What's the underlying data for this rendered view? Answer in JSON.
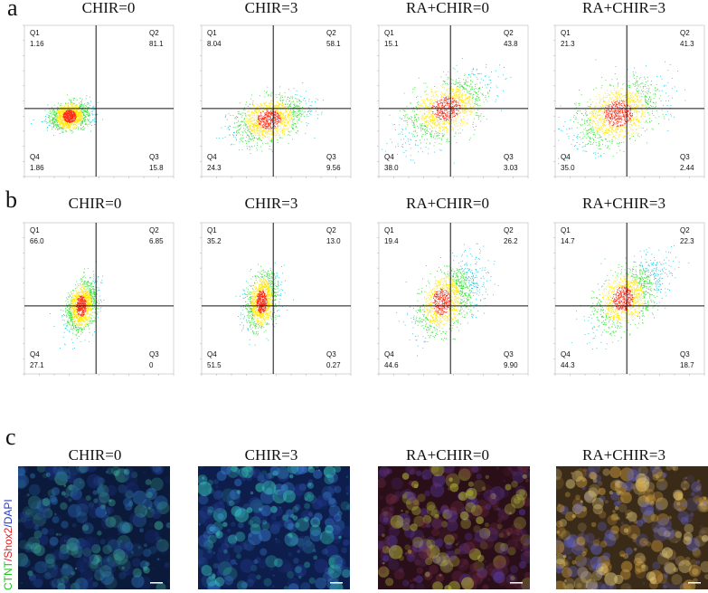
{
  "panels": [
    {
      "letter": "a",
      "conditions": [
        {
          "title": "CHIR=0",
          "q1": "1.16",
          "q2": "81.1",
          "q3": "15.8",
          "q4": "1.86",
          "center": [
            0.3,
            0.4
          ],
          "spread": [
            0.1,
            0.1
          ],
          "tilt": 0.5
        },
        {
          "title": "CHIR=3",
          "q1": "8.04",
          "q2": "58.1",
          "q3": "9.56",
          "q4": "24.3",
          "center": [
            0.45,
            0.38
          ],
          "spread": [
            0.18,
            0.15
          ],
          "tilt": 0.6
        },
        {
          "title": "RA+CHIR=0",
          "q1": "15.1",
          "q2": "43.8",
          "q3": "3.03",
          "q4": "38.0",
          "center": [
            0.45,
            0.45
          ],
          "spread": [
            0.22,
            0.18
          ],
          "tilt": 0.9
        },
        {
          "title": "RA+CHIR=3",
          "q1": "21.3",
          "q2": "41.3",
          "q3": "2.44",
          "q4": "35.0",
          "center": [
            0.42,
            0.42
          ],
          "spread": [
            0.22,
            0.2
          ],
          "tilt": 0.8
        }
      ]
    },
    {
      "letter": "b",
      "conditions": [
        {
          "title": "CHIR=0",
          "q1": "66.0",
          "q2": "6.85",
          "q3": "0",
          "q4": "27.1",
          "center": [
            0.38,
            0.45
          ],
          "spread": [
            0.08,
            0.16
          ],
          "tilt": 1.6
        },
        {
          "title": "CHIR=3",
          "q1": "35.2",
          "q2": "13.0",
          "q3": "0.27",
          "q4": "51.5",
          "center": [
            0.4,
            0.48
          ],
          "spread": [
            0.08,
            0.18
          ],
          "tilt": 1.5
        },
        {
          "title": "RA+CHIR=0",
          "q1": "19.4",
          "q2": "26.2",
          "q3": "9.90",
          "q4": "44.6",
          "center": [
            0.42,
            0.48
          ],
          "spread": [
            0.14,
            0.2
          ],
          "tilt": 1.3
        },
        {
          "title": "RA+CHIR=3",
          "q1": "14.7",
          "q2": "22.3",
          "q3": "18.7",
          "q4": "44.3",
          "center": [
            0.45,
            0.5
          ],
          "spread": [
            0.16,
            0.18
          ],
          "tilt": 1.2
        }
      ]
    }
  ],
  "panel_c": {
    "letter": "c",
    "stain_label_ctnt": "CTNT",
    "stain_label_shox2": "/Shox2",
    "stain_label_dapi": "/DAPI",
    "stain_colors": {
      "ctnt": "#22c022",
      "shox2": "#e02020",
      "dapi": "#2a3ad8"
    },
    "images": [
      {
        "title": "CHIR=0"
      },
      {
        "title": "CHIR=3"
      },
      {
        "title": "RA+CHIR=0"
      },
      {
        "title": "RA+CHIR=3"
      }
    ]
  }
}
